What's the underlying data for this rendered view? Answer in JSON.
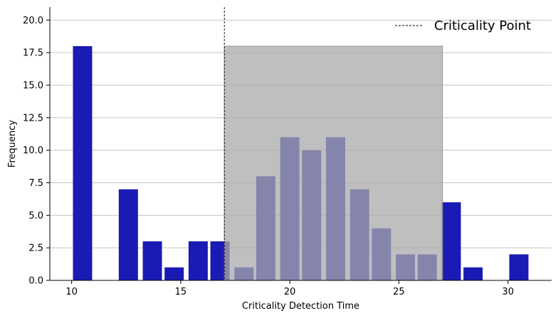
{
  "chart_data": {
    "type": "bar",
    "xlabel": "Criticality Detection Time",
    "ylabel": "Frequency",
    "xlim": [
      9.0,
      32.0
    ],
    "ylim": [
      0,
      21
    ],
    "xticks": [
      10,
      15,
      20,
      25,
      30
    ],
    "yticks": [
      0.0,
      2.5,
      5.0,
      7.5,
      10.0,
      12.5,
      15.0,
      17.5,
      20.0
    ],
    "ytick_labels": [
      "0.0",
      "2.5",
      "5.0",
      "7.5",
      "10.0",
      "12.5",
      "15.0",
      "17.5",
      "20.0"
    ],
    "grid": "horizontal",
    "bar_color": "#1a1ab4",
    "bins": [
      {
        "x": 10.5,
        "value": 18
      },
      {
        "x": 12.6,
        "value": 7
      },
      {
        "x": 13.7,
        "value": 3
      },
      {
        "x": 14.7,
        "value": 1
      },
      {
        "x": 15.8,
        "value": 3
      },
      {
        "x": 16.8,
        "value": 3
      },
      {
        "x": 17.9,
        "value": 1
      },
      {
        "x": 18.9,
        "value": 8
      },
      {
        "x": 20.0,
        "value": 11
      },
      {
        "x": 21.0,
        "value": 10
      },
      {
        "x": 22.1,
        "value": 11
      },
      {
        "x": 23.2,
        "value": 7
      },
      {
        "x": 24.2,
        "value": 4
      },
      {
        "x": 25.3,
        "value": 2
      },
      {
        "x": 26.3,
        "value": 2
      },
      {
        "x": 27.4,
        "value": 6
      },
      {
        "x": 28.4,
        "value": 1
      },
      {
        "x": 30.5,
        "value": 2
      }
    ],
    "bin_width": 0.88,
    "criticality_point": 17.0,
    "shaded_region": {
      "x0": 17.0,
      "x1": 27.0,
      "y1": 18,
      "color": "#a9a9a9"
    },
    "legend": {
      "position": "top-right",
      "entries": [
        {
          "label": "Criticality Point",
          "style": "dashed-line"
        }
      ]
    }
  }
}
